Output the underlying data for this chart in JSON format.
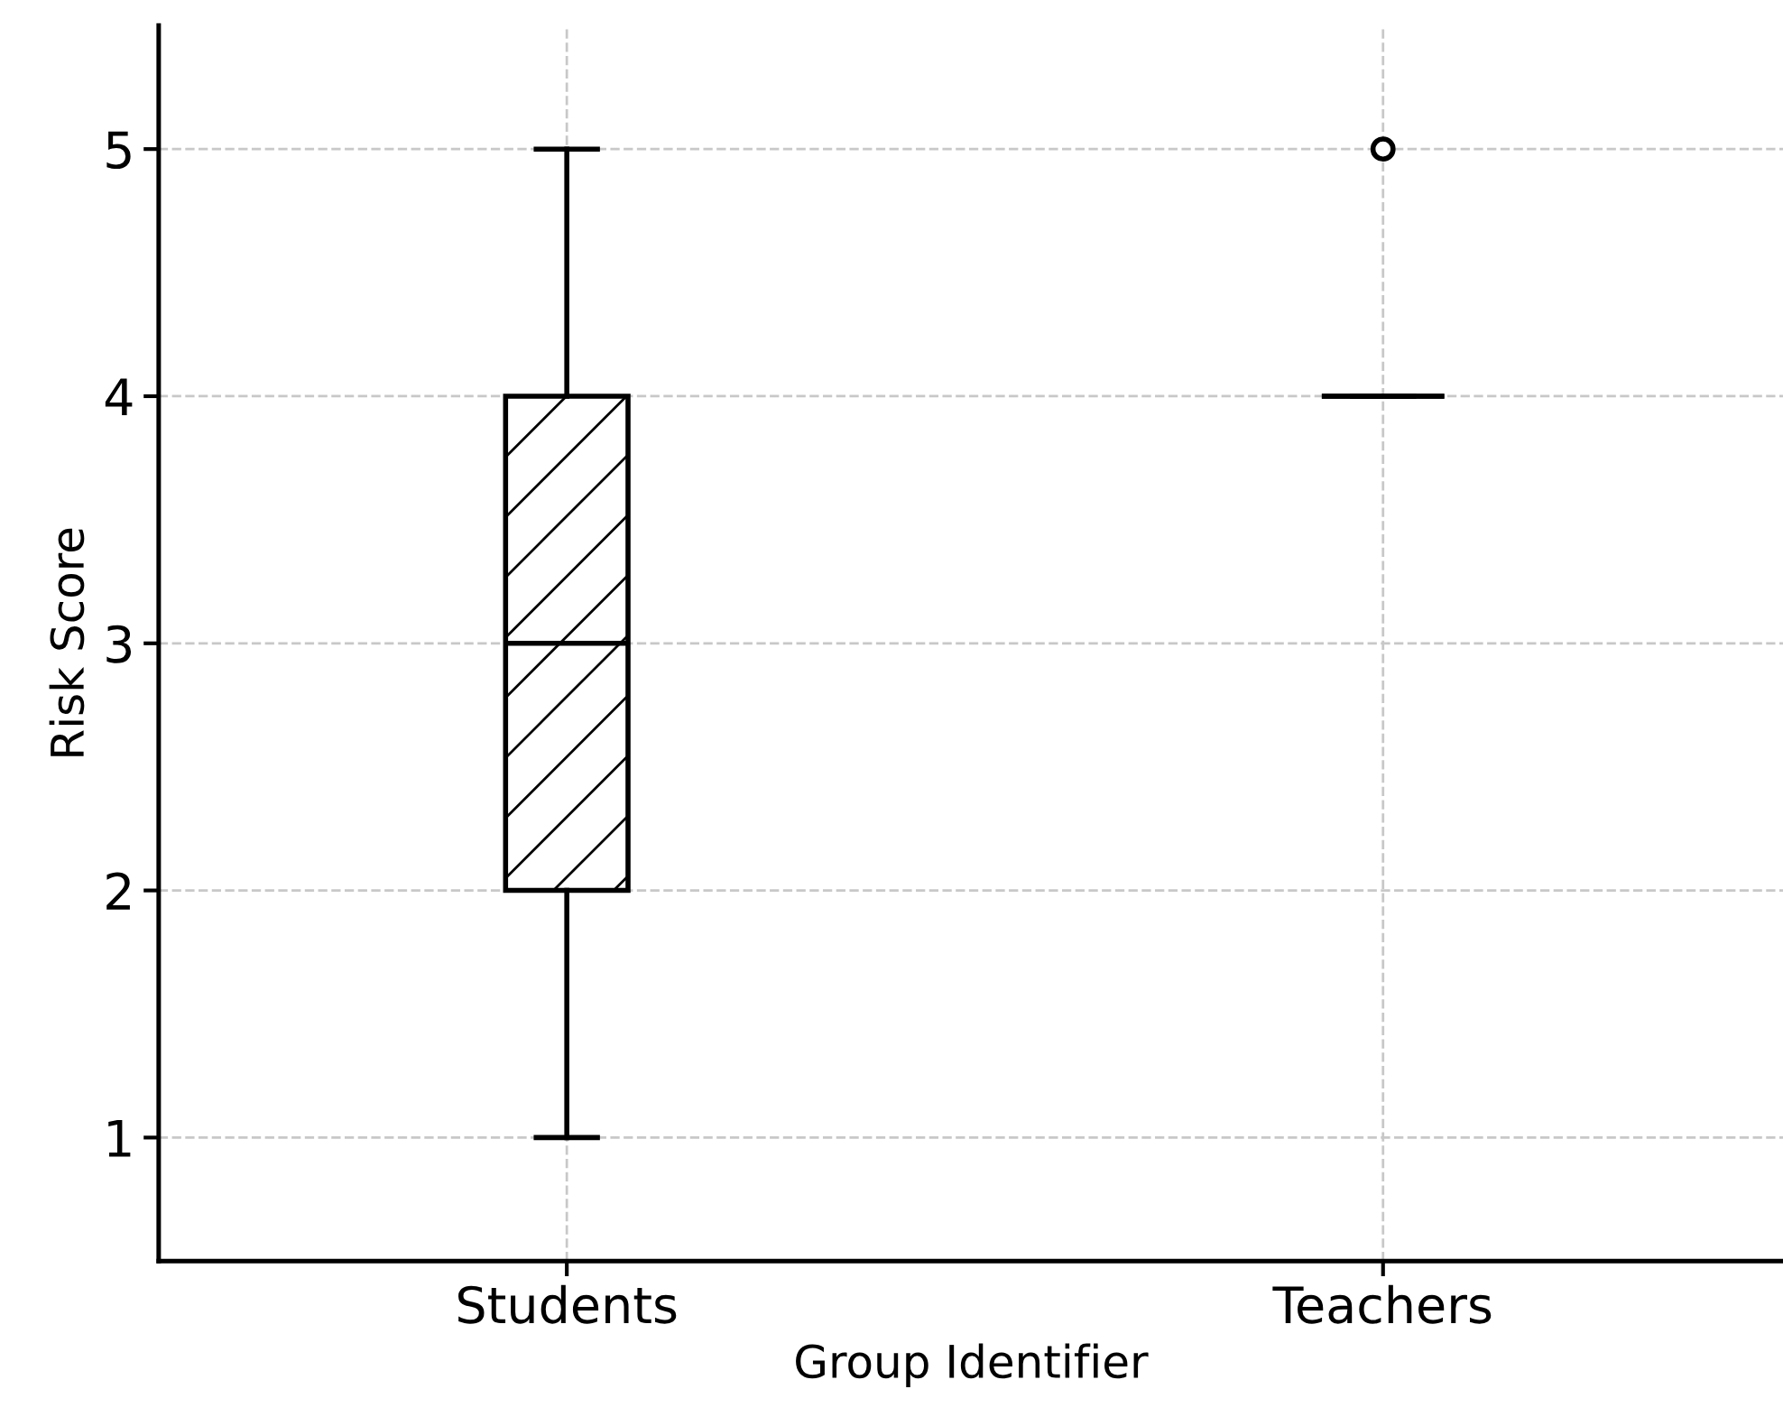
{
  "chart_data": {
    "type": "box",
    "xlabel": "Group Identifier",
    "ylabel": "Risk Score",
    "categories": [
      "Students",
      "Teachers"
    ],
    "boxes": [
      {
        "low": 1,
        "q1": 2,
        "median": 3,
        "q3": 4,
        "high": 5
      },
      {
        "low": 4,
        "q1": 4,
        "median": 4,
        "q3": 4,
        "high": 4,
        "outliers": [
          5
        ]
      }
    ],
    "ylim": [
      0.5,
      5.5
    ],
    "yticks": [
      1,
      2,
      3,
      4,
      5
    ],
    "grid": true
  }
}
